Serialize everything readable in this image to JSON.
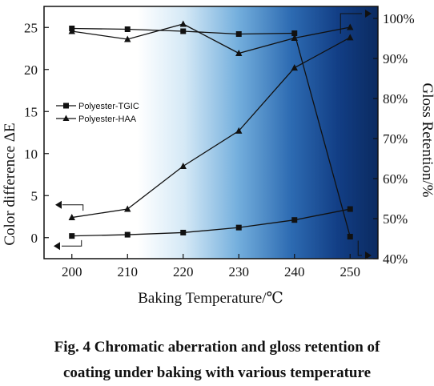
{
  "chart_data": {
    "type": "line",
    "xlabel": "Baking Temperature/℃",
    "ylabel_left": "Color difference ΔE",
    "ylabel_right": "Gloss Retention/%",
    "xlim": [
      195,
      255
    ],
    "ylim_left": [
      -2.5,
      27.5
    ],
    "ylim_right": [
      40,
      103
    ],
    "x_ticks": [
      200,
      210,
      220,
      230,
      240,
      250
    ],
    "y_left_ticks": [
      0,
      5,
      10,
      15,
      20,
      25
    ],
    "y_right_ticks": [
      40,
      50,
      60,
      70,
      80,
      90,
      100
    ],
    "y_right_tick_labels": [
      "40%",
      "50%",
      "60%",
      "70%",
      "80%",
      "90%",
      "100%"
    ],
    "x": [
      200,
      210,
      220,
      230,
      240,
      250
    ],
    "series": [
      {
        "name": "Polyester-TGIC",
        "marker": "square",
        "axis": "left",
        "values": [
          0.2,
          0.35,
          0.6,
          1.2,
          2.1,
          3.4
        ]
      },
      {
        "name": "Polyester-HAA",
        "marker": "triangle",
        "axis": "left",
        "values": [
          2.4,
          3.4,
          8.5,
          12.7,
          20.2,
          23.8
        ]
      },
      {
        "name": "Polyester-TGIC",
        "marker": "square",
        "axis": "right",
        "values": [
          97.5,
          97.3,
          96.8,
          96.1,
          96.3,
          45.5
        ]
      },
      {
        "name": "Polyester-HAA",
        "marker": "triangle",
        "axis": "right",
        "values": [
          96.8,
          94.8,
          98.6,
          91.3,
          95.1,
          97.8
        ]
      }
    ],
    "legend": {
      "position": "center-left",
      "entries": [
        {
          "label": "Polyester-TGIC",
          "marker": "square"
        },
        {
          "label": "Polyester-HAA",
          "marker": "triangle"
        }
      ]
    },
    "background_gradient": [
      "#ffffff",
      "#0b2e6a"
    ]
  },
  "caption": {
    "line1": "Fig. 4    Chromatic aberration and gloss retention of",
    "line2": "coating under baking with various temperature"
  }
}
